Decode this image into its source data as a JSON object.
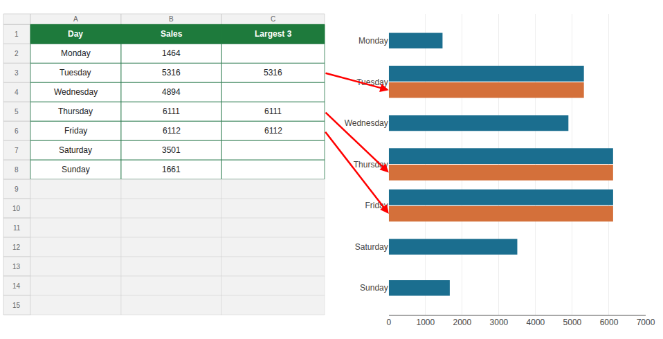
{
  "chart_data": [
    {
      "type": "table",
      "columns": [
        "Day",
        "Sales",
        "Largest 3"
      ],
      "column_letters": [
        "A",
        "B",
        "C"
      ],
      "row_numbers": [
        1,
        2,
        3,
        4,
        5,
        6,
        7,
        8,
        9,
        10,
        11,
        12,
        13,
        14,
        15
      ],
      "rows": [
        [
          "Monday",
          "1464",
          null
        ],
        [
          "Tuesday",
          "5316",
          "5316"
        ],
        [
          "Wednesday",
          "4894",
          null
        ],
        [
          "Thursday",
          "6111",
          "6111"
        ],
        [
          "Friday",
          "6112",
          "6112"
        ],
        [
          "Saturday",
          "3501",
          null
        ],
        [
          "Sunday",
          "1661",
          null
        ]
      ],
      "color": "#1E7A3C"
    },
    {
      "type": "bar",
      "orientation": "horizontal",
      "categories": [
        "Monday",
        "Tuesday",
        "Wednesday",
        "Thursday",
        "Friday",
        "Saturday",
        "Sunday"
      ],
      "series": [
        {
          "name": "Sales",
          "color": "#1B6E8F",
          "values": [
            1464,
            5316,
            4894,
            6111,
            6112,
            3501,
            1661
          ]
        },
        {
          "name": "Largest 3",
          "color": "#D4703A",
          "values": [
            null,
            5316,
            null,
            6111,
            6112,
            null,
            null
          ]
        }
      ],
      "xlim": [
        0,
        7000
      ],
      "xticks": [
        0,
        1000,
        2000,
        3000,
        4000,
        5000,
        6000,
        7000
      ],
      "grid": true,
      "annotations": [
        {
          "category": "Tuesday",
          "series": "Largest 3",
          "color": "#FF0000"
        },
        {
          "category": "Thursday",
          "series": "Largest 3",
          "color": "#FF0000"
        },
        {
          "category": "Friday",
          "series": "Largest 3",
          "color": "#FF0000"
        }
      ]
    }
  ]
}
